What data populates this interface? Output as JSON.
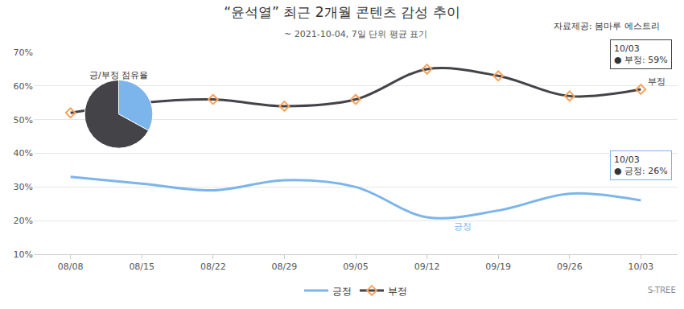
{
  "chart_data": [
    {
      "type": "line",
      "title": "“윤석열” 최근 2개월 콘텐츠 감성 추이",
      "subtitle": "~ 2021-10-04, 7일 단위 평균 표기",
      "source": "자료제공: 봄마루 에스트리",
      "credit": "S-TREE",
      "categories": [
        "08/08",
        "08/15",
        "08/22",
        "08/29",
        "09/05",
        "09/12",
        "09/19",
        "09/26",
        "10/03"
      ],
      "series": [
        {
          "name": "긍정",
          "color": "#7cb5ec",
          "marker": "none",
          "line_style": "spline",
          "values": [
            33,
            31,
            29,
            32,
            30,
            21,
            23,
            28,
            26
          ]
        },
        {
          "name": "부정",
          "color": "#434348",
          "marker": "diamond-open",
          "line_style": "spline",
          "values": [
            52,
            55,
            56,
            54,
            56,
            65,
            63,
            57,
            59
          ]
        }
      ],
      "ylim": [
        10,
        70
      ],
      "yticks": [
        {
          "value": 10,
          "label": "10%"
        },
        {
          "value": 20,
          "label": "20%"
        },
        {
          "value": 30,
          "label": "30%"
        },
        {
          "value": 40,
          "label": "40%"
        },
        {
          "value": 50,
          "label": "50%"
        },
        {
          "value": 60,
          "label": "60%"
        },
        {
          "value": 70,
          "label": "70%"
        }
      ],
      "grid": true,
      "legend": "bottom",
      "annotations": [
        {
          "category": "10/03",
          "series": "부정",
          "y": 59,
          "lines": [
            "10/03",
            "● 부정: 59%"
          ]
        },
        {
          "category": "10/03",
          "series": "긍정",
          "y": 26,
          "lines": [
            "10/03",
            "● 긍정: 26%"
          ]
        }
      ]
    },
    {
      "type": "pie",
      "title": "긍/부정 점유율",
      "categories": [
        "긍정",
        "부정"
      ],
      "values": [
        33,
        67
      ],
      "colors": [
        "#7cb5ec",
        "#434348"
      ]
    }
  ]
}
